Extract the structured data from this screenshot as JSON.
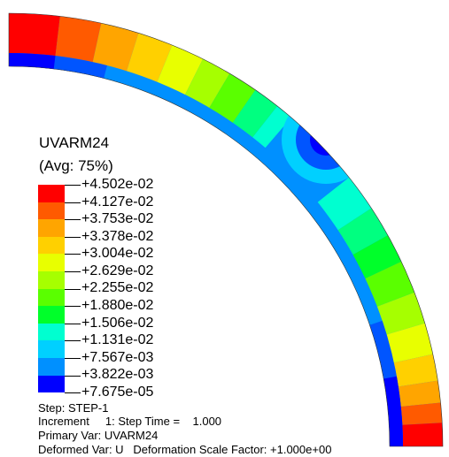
{
  "viewport": {
    "contour_colors": [
      "#ff0000",
      "#ff5a00",
      "#ffa500",
      "#ffd000",
      "#e8ff00",
      "#a6ff00",
      "#5aff00",
      "#00ff2a",
      "#00ff80",
      "#00ffd0",
      "#00d0ff",
      "#0090ff",
      "#0055ff",
      "#0000ff"
    ]
  },
  "legend": {
    "title": "UVARM24",
    "subtitle": "(Avg: 75%)",
    "levels": [
      "+4.502e-02",
      "+4.127e-02",
      "+3.753e-02",
      "+3.378e-02",
      "+3.004e-02",
      "+2.629e-02",
      "+2.255e-02",
      "+1.880e-02",
      "+1.506e-02",
      "+1.131e-02",
      "+7.567e-03",
      "+3.822e-03",
      "+7.675e-05"
    ],
    "band_colors": [
      "#ff0000",
      "#ff5a00",
      "#ffa500",
      "#ffd000",
      "#e8ff00",
      "#a6ff00",
      "#5aff00",
      "#00ff2a",
      "#00ff80",
      "#00ffd0",
      "#00d0ff",
      "#0090ff",
      "#0000ff"
    ]
  },
  "info": {
    "step": "Step: STEP-1",
    "increment": "Increment     1: Step Time =    1.000",
    "primary_var": "Primary Var: UVARM24",
    "deformed_var": "Deformed Var: U   Deformation Scale Factor: +1.000e+00"
  }
}
